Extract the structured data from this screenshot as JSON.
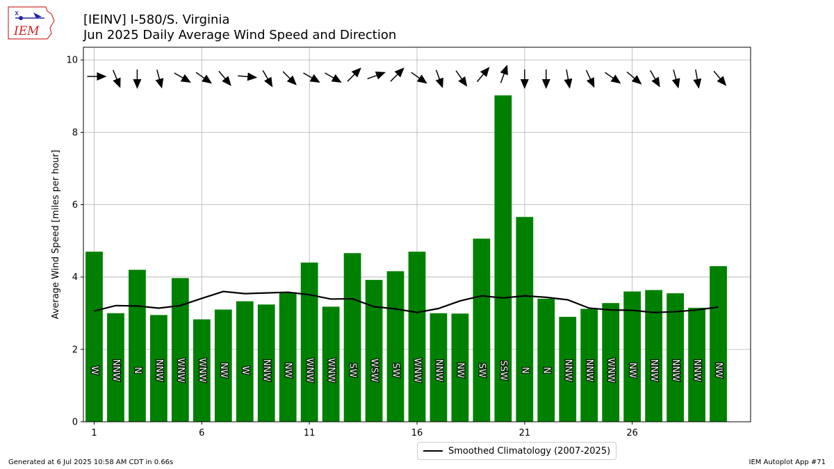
{
  "logo": {
    "text": "IEM"
  },
  "chart_data": {
    "type": "bar",
    "title": "[IEINV] I-580/S. Virginia",
    "subtitle": "Jun 2025 Daily Average Wind Speed and Direction",
    "ylabel": "Average Wind Speed [miles per hour]",
    "xlabel": "",
    "xlim": [
      0.5,
      31.5
    ],
    "ylim": [
      0,
      10.35
    ],
    "xticks": [
      1,
      6,
      11,
      16,
      21,
      26
    ],
    "yticks": [
      0,
      2,
      4,
      6,
      8,
      10
    ],
    "grid": true,
    "legend_position": "bottom-center",
    "bar_color": "#008000",
    "days": [
      1,
      2,
      3,
      4,
      5,
      6,
      7,
      8,
      9,
      10,
      11,
      12,
      13,
      14,
      15,
      16,
      17,
      18,
      19,
      20,
      21,
      22,
      23,
      24,
      25,
      26,
      27,
      28,
      29,
      30
    ],
    "speed": [
      4.7,
      3.0,
      4.2,
      2.95,
      3.97,
      2.83,
      3.1,
      3.33,
      3.24,
      3.58,
      4.4,
      3.18,
      4.66,
      3.92,
      4.16,
      4.7,
      3.0,
      2.99,
      5.06,
      9.02,
      5.66,
      3.4,
      2.9,
      3.12,
      3.28,
      3.6,
      3.64,
      3.55,
      3.15,
      4.3
    ],
    "direction_labels": [
      "W",
      "NNW",
      "N",
      "NNW",
      "WNW",
      "WNW",
      "NW",
      "W",
      "NNW",
      "NW",
      "WNW",
      "WNW",
      "SW",
      "WSW",
      "SW",
      "WNW",
      "NNW",
      "NW",
      "SW",
      "SSW",
      "N",
      "N",
      "NNW",
      "NNW",
      "WNW",
      "NW",
      "NNW",
      "NNW",
      "NNW",
      "NW"
    ],
    "direction_deg": [
      270,
      338,
      0,
      345,
      300,
      305,
      320,
      275,
      330,
      315,
      300,
      300,
      225,
      250,
      225,
      305,
      340,
      325,
      220,
      200,
      0,
      0,
      350,
      335,
      305,
      310,
      330,
      345,
      350,
      320
    ],
    "series": [
      {
        "name": "Smoothed Climatology (2007-2025)",
        "color": "#000000",
        "values": [
          3.06,
          3.21,
          3.2,
          3.14,
          3.21,
          3.41,
          3.6,
          3.54,
          3.56,
          3.58,
          3.51,
          3.39,
          3.4,
          3.18,
          3.12,
          3.02,
          3.13,
          3.34,
          3.48,
          3.42,
          3.48,
          3.44,
          3.37,
          3.14,
          3.09,
          3.08,
          3.02,
          3.04,
          3.09,
          3.17
        ]
      }
    ]
  },
  "footer": {
    "generated": "Generated at 6 Jul 2025 10:58 AM CDT in 0.66s",
    "app": "IEM Autoplot App #71"
  }
}
